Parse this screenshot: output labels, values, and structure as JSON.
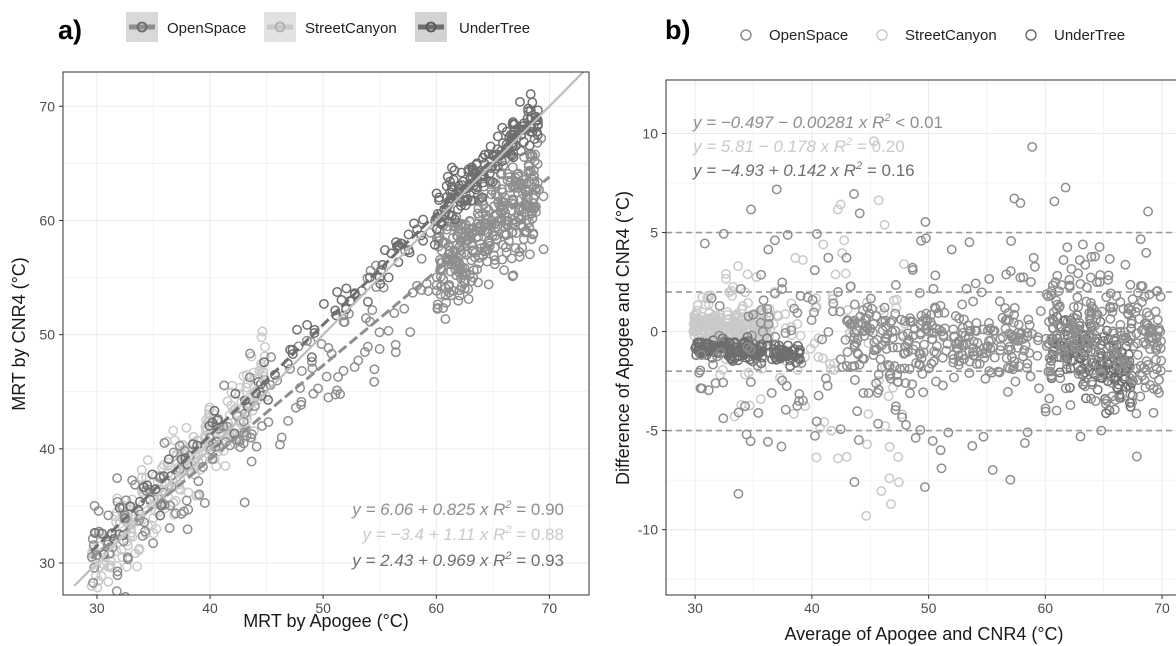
{
  "colors": {
    "OpenSpace": "#8e8e8e",
    "StreetCanyon": "#c9c9c9",
    "UnderTree": "#6e6e6e",
    "grid": "#ebebeb",
    "panel_border": "#333333",
    "dashed": "#9a9a9a"
  },
  "chart_data": [
    {
      "panel": "a)",
      "type": "scatter",
      "xlabel": "MRT by Apogee (°C)",
      "ylabel": "MRT by CNR4 (°C)",
      "xlim": [
        27,
        73.5
      ],
      "ylim": [
        27.2,
        73
      ],
      "xticks": [
        30,
        40,
        50,
        60,
        70
      ],
      "yticks": [
        30,
        40,
        50,
        60,
        70
      ],
      "grid": true,
      "legend": {
        "position": "top",
        "entries": [
          "OpenSpace",
          "StreetCanyon",
          "UnderTree"
        ],
        "marker": "line-with-point"
      },
      "series": [
        {
          "name": "OpenSpace",
          "x_range": [
            29.5,
            70
          ],
          "fit": {
            "intercept": 6.06,
            "slope": 0.825
          }
        },
        {
          "name": "StreetCanyon",
          "x_range": [
            29.5,
            45
          ],
          "fit": {
            "intercept": -3.4,
            "slope": 1.11
          }
        },
        {
          "name": "UnderTree",
          "x_range": [
            29.5,
            69
          ],
          "fit": {
            "intercept": 2.43,
            "slope": 0.969
          }
        }
      ],
      "reference_line": {
        "slope": 1,
        "intercept": 0
      },
      "annotations": [
        {
          "series": "OpenSpace",
          "eq": "y = 6.06 + 0.825 x",
          "r2_label": "R",
          "r2_exp": "2",
          "r2_value": " = 0.90"
        },
        {
          "series": "StreetCanyon",
          "eq": "y = −3.4 + 1.11 x",
          "r2_label": "R",
          "r2_exp": "2",
          "r2_value": " = 0.88"
        },
        {
          "series": "UnderTree",
          "eq": "y = 2.43 + 0.969 x",
          "r2_label": "R",
          "r2_exp": "2",
          "r2_value": " = 0.93"
        }
      ]
    },
    {
      "panel": "b)",
      "type": "scatter",
      "xlabel": "Average of Apogee and CNR4 (°C)",
      "ylabel": "Difference of Apogee and CNR4 (°C)",
      "xlim": [
        27.5,
        71.2
      ],
      "ylim": [
        -13.3,
        12.7
      ],
      "xticks": [
        30,
        40,
        50,
        60,
        70
      ],
      "yticks": [
        -10,
        -5,
        0,
        5,
        10
      ],
      "grid": true,
      "legend": {
        "position": "top",
        "entries": [
          "OpenSpace",
          "StreetCanyon",
          "UnderTree"
        ],
        "marker": "open-circle"
      },
      "hlines": [
        5,
        2,
        -2,
        -5
      ],
      "series": [
        {
          "name": "OpenSpace",
          "fit": {
            "intercept": -0.497,
            "slope": -0.00281
          }
        },
        {
          "name": "StreetCanyon",
          "fit": {
            "intercept": 5.81,
            "slope": -0.178
          }
        },
        {
          "name": "UnderTree",
          "fit": {
            "intercept": -4.93,
            "slope": 0.142
          }
        }
      ],
      "annotations": [
        {
          "series": "OpenSpace",
          "eq": "y = −0.497 − 0.00281 x",
          "r2_label": "R",
          "r2_exp": "2",
          "r2_value": " < 0.01"
        },
        {
          "series": "StreetCanyon",
          "eq": "y = 5.81 − 0.178 x",
          "r2_label": "R",
          "r2_exp": "2",
          "r2_value": " = 0.20"
        },
        {
          "series": "UnderTree",
          "eq": "y = −4.93 + 0.142 x",
          "r2_label": "R",
          "r2_exp": "2",
          "r2_value": " = 0.16"
        }
      ]
    }
  ]
}
